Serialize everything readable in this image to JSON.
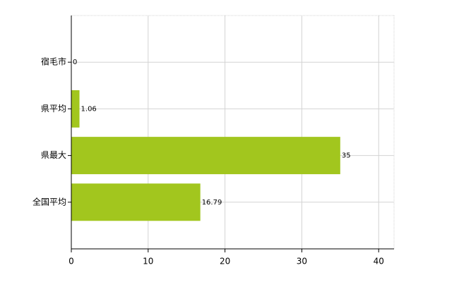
{
  "chart_data": {
    "type": "hbar",
    "categories": [
      "宿毛市",
      "県平均",
      "県最大",
      "全国平均"
    ],
    "values": [
      0,
      1.06,
      35,
      16.79
    ],
    "color": "#a2c61e",
    "xlim": [
      0,
      42
    ],
    "xticks": [
      0,
      10,
      20,
      30,
      40
    ],
    "grid": true
  }
}
